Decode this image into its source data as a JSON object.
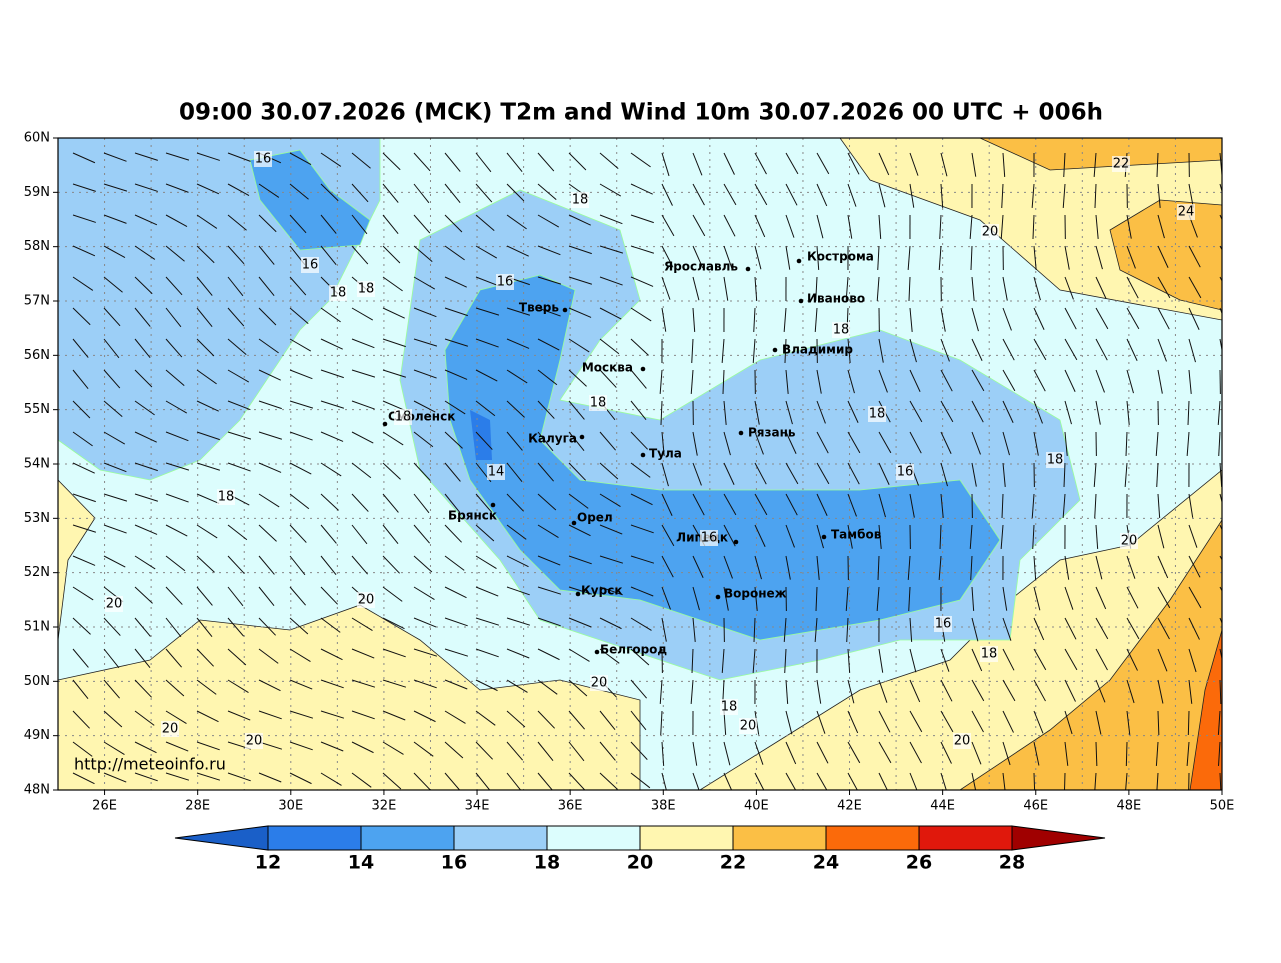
{
  "title": "09:00 30.07.2026 (MCK) T2m and Wind 10m 30.07.2026 00 UTC + 006h",
  "lat_labels": [
    "60N",
    "59N",
    "58N",
    "57N",
    "56N",
    "55N",
    "54N",
    "53N",
    "52N",
    "51N",
    "50N",
    "49N",
    "48N"
  ],
  "lon_labels": [
    "26E",
    "28E",
    "30E",
    "32E",
    "34E",
    "36E",
    "38E",
    "40E",
    "42E",
    "44E",
    "46E",
    "48E",
    "50E"
  ],
  "cities": [
    "Ярославль",
    "Кострома",
    "Иваново",
    "Тверь",
    "Москва",
    "Владимир",
    "Смоленск",
    "Калуга",
    "Рязань",
    "Тула",
    "Брянск",
    "Орел",
    "Липецк",
    "Тамбов",
    "Курск",
    "Воронеж",
    "Белгород"
  ],
  "contour_labels": [
    16,
    18,
    16,
    18,
    18,
    16,
    18,
    18,
    18,
    18,
    14,
    16,
    18,
    18,
    16,
    20,
    20,
    20,
    16,
    18,
    20,
    18,
    20,
    20,
    20,
    20,
    20,
    22,
    24
  ],
  "url": "http://meteoinfo.ru",
  "colorbar": {
    "ticks": [
      12,
      14,
      16,
      18,
      20,
      22,
      24,
      26,
      28
    ],
    "colors": [
      "#1a5fc8",
      "#2b7de9",
      "#4da3f0",
      "#9ccff7",
      "#dcfdfd",
      "#fff6b0",
      "#fbbf45",
      "#fb6a0a",
      "#e0180c",
      "#a00000"
    ]
  }
}
